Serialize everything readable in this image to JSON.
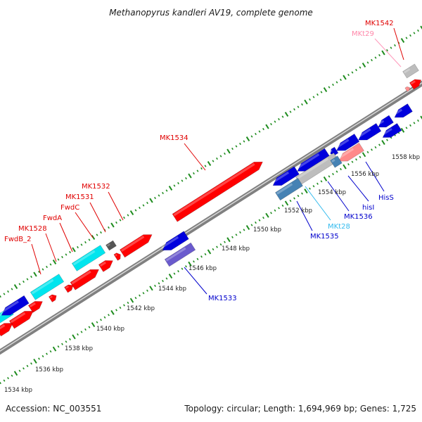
{
  "title": "Methanopyrus kandleri AV19, complete genome",
  "footer": {
    "accession": "Accession: NC_003551",
    "summary": "Topology: circular; Length: 1,694,969 bp; Genes: 1,725"
  },
  "colors": {
    "red": "#ff0000",
    "blue": "#0000dd",
    "cyan": "#00e5ee",
    "steel": "#4682b4",
    "slate": "#6a5acd",
    "gray": "#bdbdbd",
    "pink": "#ff8a8a",
    "tick": "#1e8c1e",
    "backbone": "#808080"
  },
  "kbp_labels": [
    "1534 kbp",
    "1536 kbp",
    "1538 kbp",
    "1540 kbp",
    "1542 kbp",
    "1544 kbp",
    "1546 kbp",
    "1548 kbp",
    "1550 kbp",
    "1552 kbp",
    "1554 kbp",
    "1556 kbp",
    "1558 kbp"
  ],
  "gene_labels": [
    {
      "text": "MK1542",
      "color": "#e00000"
    },
    {
      "text": "MKt29",
      "color": "#ff88aa"
    },
    {
      "text": "MK1534",
      "color": "#e00000"
    },
    {
      "text": "MK1532",
      "color": "#e00000"
    },
    {
      "text": "MK1531",
      "color": "#e00000"
    },
    {
      "text": "FwdC",
      "color": "#e00000"
    },
    {
      "text": "FwdA",
      "color": "#e00000"
    },
    {
      "text": "MK1528",
      "color": "#e00000"
    },
    {
      "text": "FwdB_2",
      "color": "#e00000"
    },
    {
      "text": "HisS",
      "color": "#0000cc"
    },
    {
      "text": "hisI",
      "color": "#0000cc"
    },
    {
      "text": "MK1536",
      "color": "#0000cc"
    },
    {
      "text": "MKt28",
      "color": "#33bbee"
    },
    {
      "text": "MK1535",
      "color": "#0000cc"
    },
    {
      "text": "MK1533",
      "color": "#0000cc"
    }
  ]
}
